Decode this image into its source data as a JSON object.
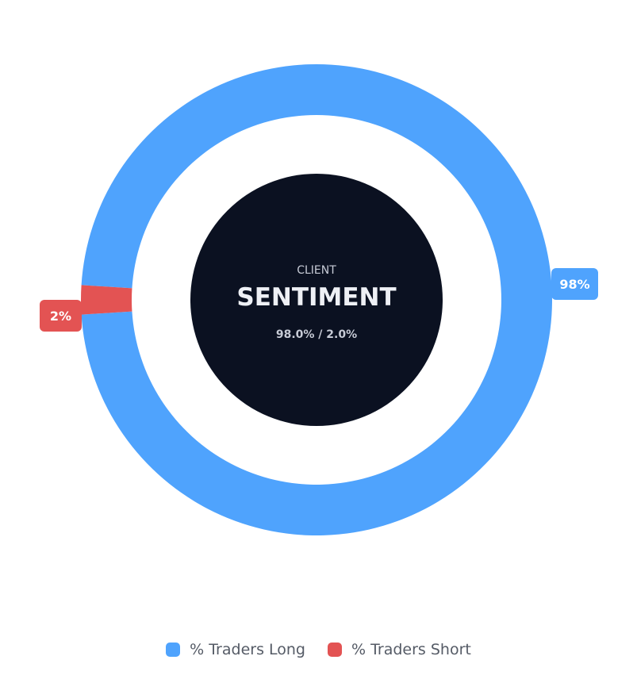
{
  "chart_data": {
    "type": "pie",
    "variant": "donut",
    "categories": [
      "% Traders Long",
      "% Traders Short"
    ],
    "values": [
      98.0,
      2.0
    ],
    "colors": [
      "#4fa3fd",
      "#e35353"
    ],
    "data_labels": [
      "98%",
      "2%"
    ],
    "legend_placement": "bottom-center",
    "center": {
      "label_small": "CLIENT",
      "label_big": "SENTIMENT",
      "ratio": "98.0% / 2.0%"
    }
  },
  "legend": {
    "items": [
      {
        "label": "% Traders Long",
        "color": "#4fa3fd"
      },
      {
        "label": "% Traders Short",
        "color": "#e35353"
      }
    ]
  },
  "colors": {
    "center_fill": "#0b1121",
    "background": "#ffffff"
  }
}
